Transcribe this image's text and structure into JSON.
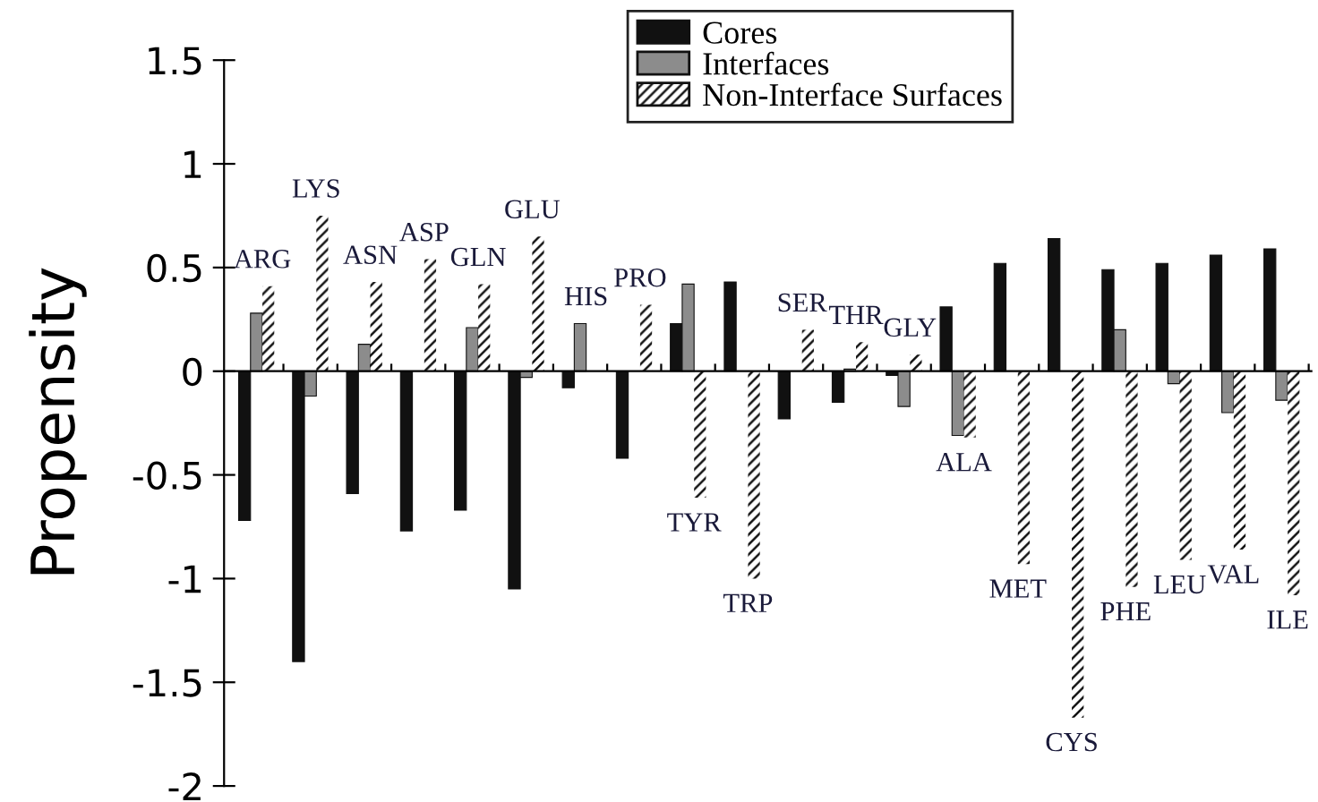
{
  "chart_data": {
    "type": "bar",
    "ylabel": "Propensity",
    "categories": [
      "ARG",
      "LYS",
      "ASN",
      "ASP",
      "GLN",
      "GLU",
      "HIS",
      "PRO",
      "TYR",
      "TRP",
      "SER",
      "THR",
      "GLY",
      "ALA",
      "MET",
      "CYS",
      "PHE",
      "LEU",
      "VAL",
      "ILE"
    ],
    "series": [
      {
        "name": "Cores",
        "color": "#111111",
        "values": [
          -0.72,
          -1.4,
          -0.59,
          -0.77,
          -0.67,
          -1.05,
          -0.08,
          -0.42,
          0.23,
          0.43,
          -0.23,
          -0.15,
          -0.02,
          0.31,
          0.52,
          0.64,
          0.49,
          0.52,
          0.56,
          0.59
        ]
      },
      {
        "name": "Interfaces",
        "color": "#8c8c8c",
        "values": [
          0.28,
          -0.12,
          0.13,
          null,
          0.21,
          -0.03,
          0.23,
          null,
          0.42,
          null,
          null,
          0.01,
          -0.17,
          -0.31,
          null,
          null,
          0.2,
          -0.06,
          -0.2,
          -0.14
        ]
      },
      {
        "name": "Non-Interface Surfaces",
        "color": "#ffffff",
        "values": [
          0.41,
          0.75,
          0.43,
          0.54,
          0.42,
          0.65,
          null,
          0.32,
          -0.61,
          -1.0,
          0.2,
          0.14,
          0.08,
          -0.32,
          -0.93,
          -1.67,
          -1.04,
          -0.91,
          -0.86,
          -1.08
        ]
      }
    ],
    "ylim": [
      -2,
      1.5
    ],
    "yticks": [
      -2,
      -1.5,
      -1,
      -0.5,
      0,
      0.5,
      1,
      1.5
    ],
    "tick_labels": "y",
    "legend": "top right",
    "grid": false
  }
}
